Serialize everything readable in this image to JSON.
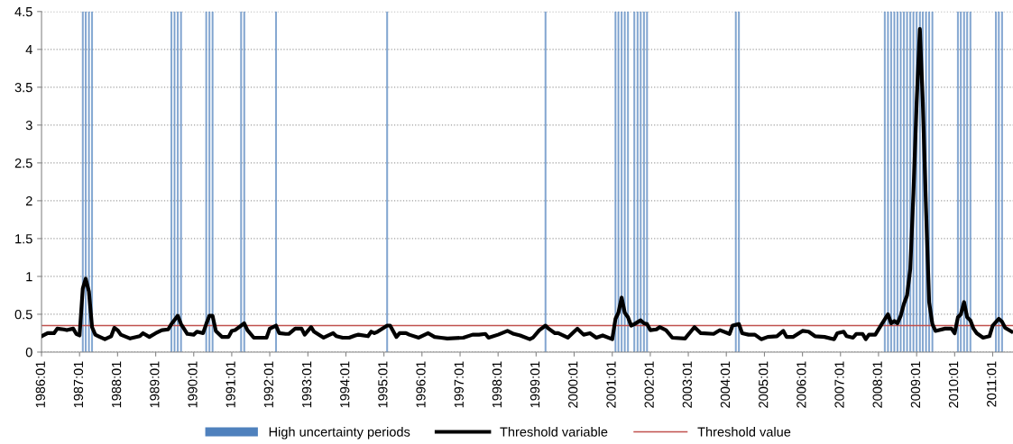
{
  "chart_data": {
    "type": "line",
    "ylim": [
      0,
      4.5
    ],
    "yticks": [
      0,
      0.5,
      1,
      1.5,
      2,
      2.5,
      3,
      3.5,
      4,
      4.5
    ],
    "xlim": [
      "1986-01",
      "2011-07-15"
    ],
    "xticks": [
      {
        "value": "1986-01",
        "label": "1986:01"
      },
      {
        "value": "1987-01",
        "label": "1987:01"
      },
      {
        "value": "1988-01",
        "label": "1988:01"
      },
      {
        "value": "1989-01",
        "label": "1989:01"
      },
      {
        "value": "1990-01",
        "label": "1990:01"
      },
      {
        "value": "1991-01",
        "label": "1991:01"
      },
      {
        "value": "1992-01",
        "label": "1992:01"
      },
      {
        "value": "1993-01",
        "label": "1993:01"
      },
      {
        "value": "1994-01",
        "label": "1994:01"
      },
      {
        "value": "1995-01",
        "label": "1995:01"
      },
      {
        "value": "1996-01",
        "label": "1996:01"
      },
      {
        "value": "1997-01",
        "label": "1997:01"
      },
      {
        "value": "1998-01",
        "label": "1998:01"
      },
      {
        "value": "1999-01",
        "label": "1999:01"
      },
      {
        "value": "2000-01",
        "label": "2000:01"
      },
      {
        "value": "2001-01",
        "label": "2001:01"
      },
      {
        "value": "2002-01",
        "label": "2002:01"
      },
      {
        "value": "2003-01",
        "label": "2003:01"
      },
      {
        "value": "2004-01",
        "label": "2004:01"
      },
      {
        "value": "2005-01",
        "label": "2005:01"
      },
      {
        "value": "2006-01",
        "label": "2006:01"
      },
      {
        "value": "2007-01",
        "label": "2007:01"
      },
      {
        "value": "2008-01",
        "label": "2008:01"
      },
      {
        "value": "2009-01",
        "label": "2009:01"
      },
      {
        "value": "2010-01",
        "label": "2010:01"
      },
      {
        "value": "2011-01",
        "label": "2011:01"
      }
    ],
    "series": [
      {
        "name": "High uncertainty periods",
        "type": "bar",
        "color": "#4f81bd",
        "x": [
          "1987-02",
          "1987-03",
          "1987-04",
          "1987-05",
          "1989-06",
          "1989-07",
          "1989-08",
          "1989-09",
          "1990-05",
          "1990-06",
          "1990-07",
          "1991-04",
          "1991-05",
          "1992-03",
          "1995-02",
          "1999-04",
          "2001-02",
          "2001-03",
          "2001-04",
          "2001-05",
          "2001-06",
          "2001-08",
          "2001-09",
          "2001-10",
          "2001-11",
          "2001-12",
          "2004-04",
          "2004-05",
          "2008-03",
          "2008-04",
          "2008-05",
          "2008-06",
          "2008-07",
          "2008-08",
          "2008-09",
          "2008-10",
          "2008-11",
          "2008-12",
          "2009-01",
          "2009-02",
          "2009-03",
          "2009-04",
          "2009-05",
          "2009-06",
          "2010-02",
          "2010-03",
          "2010-04",
          "2010-05",
          "2010-06",
          "2011-02",
          "2011-03",
          "2011-04"
        ],
        "values": [
          4.5,
          4.5,
          4.5,
          4.5,
          4.5,
          4.5,
          4.5,
          4.5,
          4.5,
          4.5,
          4.5,
          4.5,
          4.5,
          4.5,
          4.5,
          4.5,
          4.5,
          4.5,
          4.5,
          4.5,
          4.5,
          4.5,
          4.5,
          4.5,
          4.5,
          4.5,
          4.5,
          4.5,
          4.5,
          4.5,
          4.5,
          4.5,
          4.5,
          4.5,
          4.5,
          4.5,
          4.5,
          4.5,
          4.5,
          4.5,
          4.5,
          4.5,
          4.5,
          4.5,
          4.5,
          4.5,
          4.5,
          4.5,
          4.5,
          4.5,
          4.5,
          4.5
        ]
      },
      {
        "name": "Threshold variable",
        "color": "#000000",
        "x": [
          "1986-01",
          "1986-03",
          "1986-05",
          "1986-06",
          "1986-08",
          "1986-09",
          "1986-11",
          "1986-12",
          "1987-01",
          "1987-02",
          "1987-03",
          "1987-04",
          "1987-05",
          "1987-06",
          "1987-07",
          "1987-09",
          "1987-11",
          "1987-12",
          "1988-01",
          "1988-02",
          "1988-05",
          "1988-08",
          "1988-09",
          "1988-11",
          "1989-01",
          "1989-03",
          "1989-05",
          "1989-06",
          "1989-08",
          "1989-09",
          "1989-11",
          "1990-01",
          "1990-02",
          "1990-04",
          "1990-05",
          "1990-06",
          "1990-07",
          "1990-08",
          "1990-10",
          "1990-12",
          "1991-01",
          "1991-02",
          "1991-05",
          "1991-06",
          "1991-08",
          "1991-12",
          "1992-01",
          "1992-03",
          "1992-04",
          "1992-06",
          "1992-07",
          "1992-09",
          "1992-11",
          "1992-12",
          "1993-02",
          "1993-03",
          "1993-06",
          "1993-09",
          "1993-10",
          "1993-12",
          "1994-02",
          "1994-04",
          "1994-05",
          "1994-08",
          "1994-09",
          "1994-10",
          "1994-11",
          "1995-02",
          "1995-03",
          "1995-05",
          "1995-06",
          "1995-08",
          "1995-09",
          "1995-12",
          "1996-03",
          "1996-05",
          "1996-07",
          "1996-09",
          "1997-02",
          "1997-05",
          "1997-07",
          "1997-09",
          "1997-10",
          "1998-01",
          "1998-04",
          "1998-06",
          "1998-08",
          "1998-11",
          "1998-12",
          "1999-02",
          "1999-04",
          "1999-05",
          "1999-07",
          "1999-08",
          "1999-11",
          "2000-01",
          "2000-02",
          "2000-04",
          "2000-06",
          "2000-08",
          "2000-10",
          "2001-01",
          "2001-02",
          "2001-03",
          "2001-04",
          "2001-05",
          "2001-06",
          "2001-07",
          "2001-08",
          "2001-10",
          "2001-11",
          "2001-12",
          "2002-01",
          "2002-03",
          "2002-04",
          "2002-06",
          "2002-08",
          "2002-12",
          "2003-03",
          "2003-05",
          "2003-09",
          "2003-11",
          "2004-02",
          "2004-03",
          "2004-05",
          "2004-06",
          "2004-08",
          "2004-10",
          "2004-12",
          "2005-02",
          "2005-05",
          "2005-07",
          "2005-08",
          "2005-10",
          "2006-01",
          "2006-03",
          "2006-05",
          "2006-08",
          "2006-11",
          "2006-12",
          "2007-02",
          "2007-03",
          "2007-05",
          "2007-06",
          "2007-08",
          "2007-09",
          "2007-10",
          "2007-12",
          "2008-02",
          "2008-04",
          "2008-05",
          "2008-06",
          "2008-07",
          "2008-08",
          "2008-09",
          "2008-10",
          "2008-11",
          "2008-12",
          "2009-01",
          "2009-02",
          "2009-03",
          "2009-04",
          "2009-05",
          "2009-06",
          "2009-07",
          "2009-10",
          "2009-12",
          "2010-01",
          "2010-02",
          "2010-03",
          "2010-04",
          "2010-05",
          "2010-06",
          "2010-07",
          "2010-08",
          "2010-10",
          "2010-12",
          "2011-01",
          "2011-03",
          "2011-04",
          "2011-05",
          "2011-07"
        ],
        "values": [
          0.21,
          0.25,
          0.25,
          0.31,
          0.3,
          0.29,
          0.31,
          0.24,
          0.22,
          0.84,
          0.97,
          0.8,
          0.33,
          0.23,
          0.21,
          0.17,
          0.21,
          0.32,
          0.29,
          0.23,
          0.18,
          0.21,
          0.25,
          0.2,
          0.25,
          0.29,
          0.3,
          0.37,
          0.48,
          0.37,
          0.24,
          0.23,
          0.27,
          0.25,
          0.37,
          0.48,
          0.48,
          0.28,
          0.2,
          0.2,
          0.28,
          0.29,
          0.38,
          0.29,
          0.19,
          0.19,
          0.31,
          0.35,
          0.25,
          0.24,
          0.24,
          0.31,
          0.31,
          0.23,
          0.33,
          0.27,
          0.19,
          0.25,
          0.21,
          0.19,
          0.19,
          0.22,
          0.23,
          0.21,
          0.27,
          0.25,
          0.27,
          0.35,
          0.35,
          0.2,
          0.25,
          0.25,
          0.23,
          0.19,
          0.25,
          0.2,
          0.19,
          0.18,
          0.19,
          0.23,
          0.23,
          0.24,
          0.19,
          0.23,
          0.28,
          0.24,
          0.22,
          0.17,
          0.19,
          0.29,
          0.35,
          0.31,
          0.25,
          0.25,
          0.19,
          0.27,
          0.31,
          0.23,
          0.25,
          0.19,
          0.22,
          0.17,
          0.44,
          0.52,
          0.72,
          0.52,
          0.46,
          0.35,
          0.37,
          0.42,
          0.38,
          0.37,
          0.29,
          0.3,
          0.33,
          0.29,
          0.19,
          0.18,
          0.33,
          0.25,
          0.24,
          0.29,
          0.24,
          0.35,
          0.37,
          0.25,
          0.23,
          0.23,
          0.17,
          0.2,
          0.21,
          0.28,
          0.2,
          0.2,
          0.28,
          0.27,
          0.21,
          0.2,
          0.17,
          0.25,
          0.27,
          0.21,
          0.19,
          0.24,
          0.24,
          0.17,
          0.23,
          0.23,
          0.37,
          0.5,
          0.38,
          0.41,
          0.38,
          0.48,
          0.64,
          0.75,
          1.1,
          2.1,
          3.3,
          4.27,
          3.3,
          1.9,
          0.66,
          0.37,
          0.28,
          0.31,
          0.31,
          0.25,
          0.46,
          0.5,
          0.66,
          0.46,
          0.42,
          0.31,
          0.25,
          0.19,
          0.21,
          0.35,
          0.44,
          0.4,
          0.32,
          0.27
        ]
      }
    ],
    "ref_lines": [
      {
        "axis": "y",
        "value": 0.35,
        "label": "Threshold value",
        "color": "#c0504d",
        "line_style": "solid"
      }
    ],
    "grid": "y",
    "legend": "bottom",
    "marker": "none",
    "line_style": "solid"
  }
}
